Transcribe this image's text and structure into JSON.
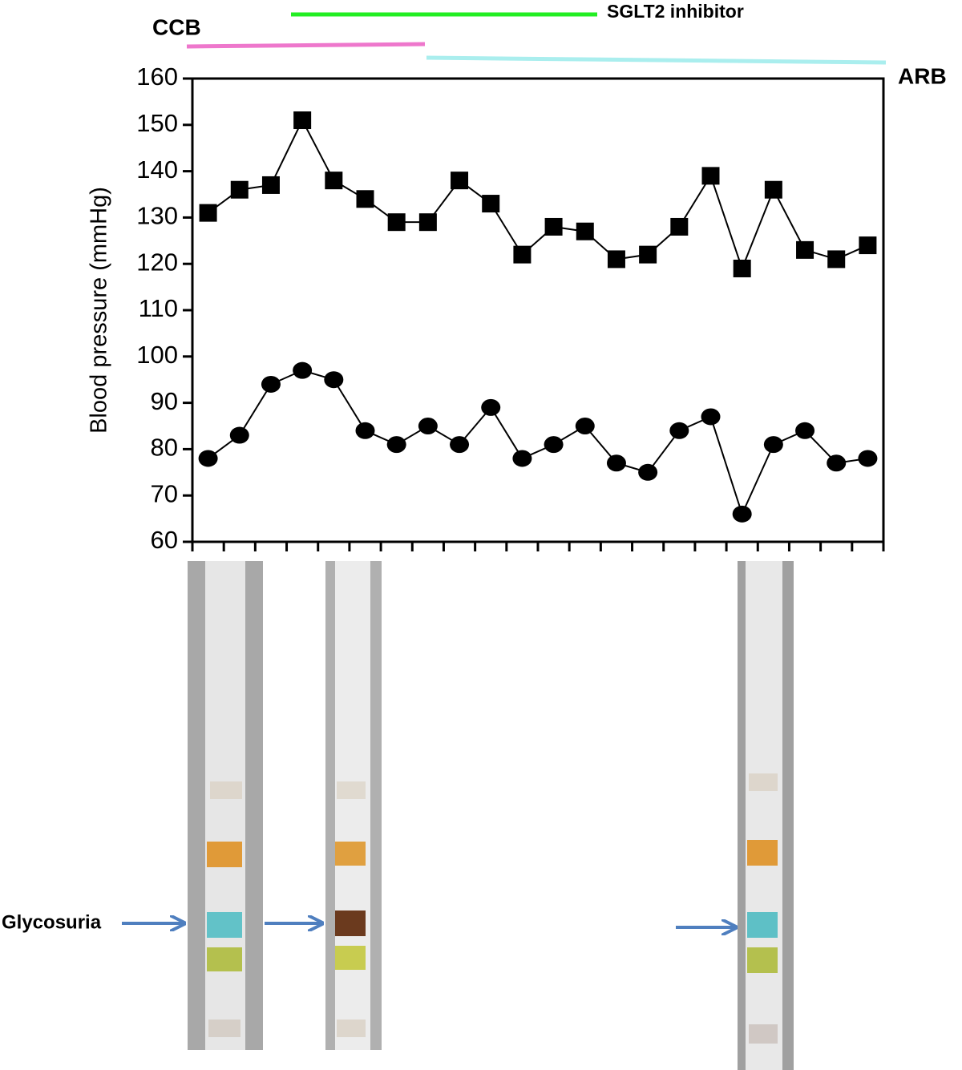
{
  "chart_data": {
    "type": "line",
    "ylabel": "Blood pressure (mmHg)",
    "categories": [
      null,
      null,
      null,
      null,
      null,
      null,
      null,
      null,
      null,
      null,
      null,
      null,
      null,
      null,
      null,
      null,
      null,
      null,
      null,
      null,
      null,
      null
    ],
    "series": [
      {
        "color": "#000000",
        "marker": "square",
        "values": [
          131,
          136,
          137,
          151,
          138,
          134,
          129,
          129,
          138,
          133,
          122,
          128,
          127,
          121,
          122,
          128,
          139,
          119,
          136,
          123,
          121,
          124
        ]
      },
      {
        "color": "#000000",
        "marker": "circle",
        "values": [
          78,
          83,
          94,
          97,
          95,
          84,
          81,
          85,
          81,
          89,
          78,
          81,
          85,
          77,
          75,
          84,
          87,
          66,
          81,
          84,
          77,
          78
        ]
      }
    ],
    "ylim": [
      60,
      160
    ],
    "yticks": [
      60,
      70,
      80,
      90,
      100,
      110,
      120,
      130,
      140,
      150,
      160
    ],
    "annotations": [
      {
        "text": "CCB",
        "color": "#ee77cc"
      },
      {
        "text": "SGLT2 inhibitor",
        "color": "#22ee22"
      },
      {
        "text": "ARB",
        "color": "#aaeeee"
      }
    ]
  },
  "photo_panel": {
    "label": "Glycosuria"
  }
}
